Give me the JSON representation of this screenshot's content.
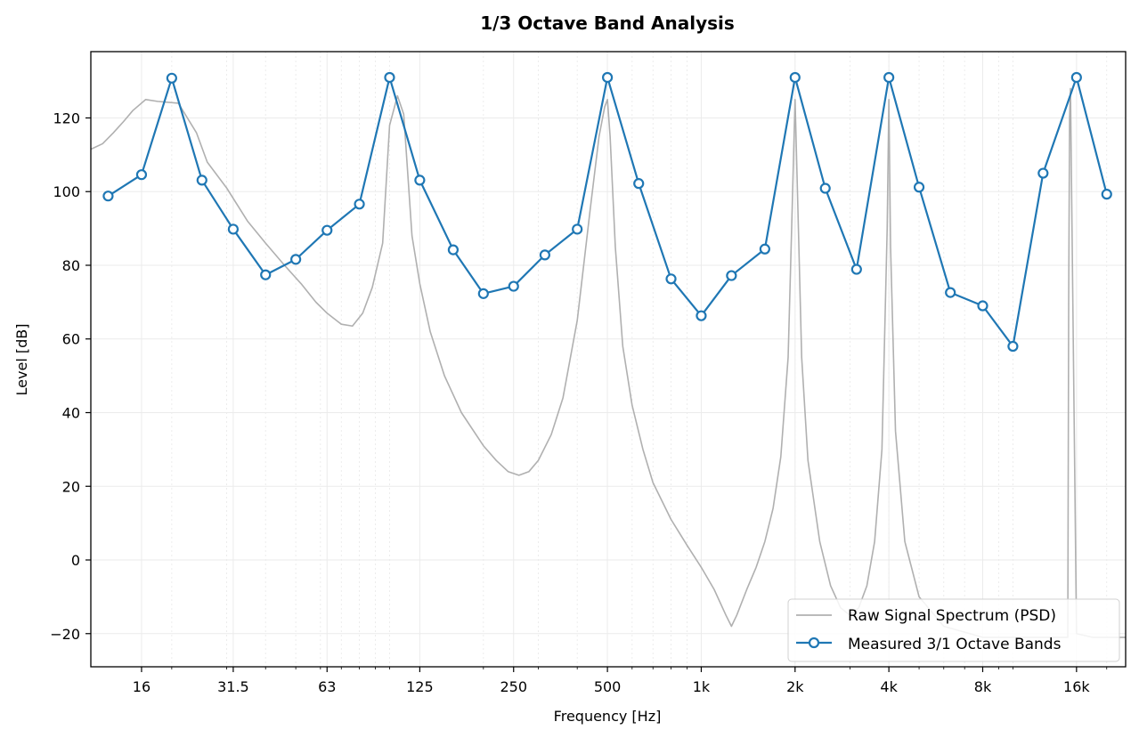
{
  "chart_data": {
    "type": "line",
    "title": "1/3 Octave Band Analysis",
    "xlabel": "Frequency [Hz]",
    "ylabel": "Level [dB]",
    "xscale": "log",
    "xlim": [
      11,
      23000
    ],
    "ylim": [
      -29,
      138
    ],
    "x_ticks": [
      16,
      31.5,
      63,
      125,
      250,
      500,
      1000,
      2000,
      4000,
      8000,
      16000
    ],
    "x_tick_labels": [
      "16",
      "31.5",
      "63",
      "125",
      "250",
      "500",
      "1k",
      "2k",
      "4k",
      "8k",
      "16k"
    ],
    "y_ticks": [
      -20,
      0,
      20,
      40,
      60,
      80,
      100,
      120
    ],
    "y_tick_labels": [
      "−20",
      "0",
      "20",
      "40",
      "60",
      "80",
      "100",
      "120"
    ],
    "grid": true,
    "legend_position": "bottom-right",
    "series": [
      {
        "name": "Raw Signal Spectrum (PSD)",
        "color": "#b0b0b0",
        "marker": "none",
        "x": [
          11,
          12,
          13,
          14,
          15,
          16.5,
          18,
          21,
          24,
          26,
          30,
          35,
          40,
          46,
          52,
          58,
          63,
          70,
          76,
          82,
          88,
          95,
          100,
          106,
          111,
          118,
          125,
          135,
          150,
          170,
          200,
          220,
          240,
          260,
          280,
          300,
          330,
          360,
          400,
          440,
          470,
          490,
          500,
          510,
          530,
          560,
          600,
          650,
          700,
          800,
          900,
          1000,
          1100,
          1200,
          1250,
          1300,
          1400,
          1500,
          1600,
          1700,
          1800,
          1900,
          1950,
          2000,
          2050,
          2100,
          2200,
          2400,
          2600,
          2800,
          3000,
          3200,
          3400,
          3600,
          3800,
          3950,
          4000,
          4050,
          4200,
          4500,
          5000,
          6000,
          8000,
          10000,
          12000,
          14000,
          15000,
          15100,
          15200,
          15300,
          16000,
          18000,
          20000,
          23000
        ],
        "y": [
          111.5,
          113,
          116,
          119,
          122,
          125,
          124.5,
          124,
          116,
          108,
          101,
          92,
          86,
          80,
          75,
          70,
          67,
          64,
          63.5,
          67,
          74,
          86,
          118,
          126,
          121,
          88,
          75,
          62,
          50,
          40,
          31,
          27,
          24,
          23,
          24,
          27,
          34,
          44,
          65,
          95,
          115,
          123,
          125,
          115,
          85,
          58,
          42,
          30,
          21,
          11,
          4,
          -2,
          -8,
          -15,
          -18,
          -15,
          -8,
          -2,
          5,
          14,
          28,
          55,
          90,
          125,
          90,
          55,
          27,
          5,
          -7,
          -13,
          -15,
          -13,
          -7,
          5,
          30,
          90,
          125,
          85,
          35,
          5,
          -10,
          -18,
          -21,
          -21,
          -21,
          -21,
          -21,
          70,
          120,
          128,
          -20,
          -21,
          -21,
          -21
        ]
      },
      {
        "name": "Measured 3/1 Octave Bands",
        "color": "#1f77b4",
        "marker": "circle",
        "x": [
          12.5,
          16,
          20,
          25,
          31.5,
          40,
          50,
          63,
          80,
          100,
          125,
          160,
          200,
          250,
          315,
          400,
          500,
          630,
          800,
          1000,
          1250,
          1600,
          2000,
          2500,
          3150,
          4000,
          5000,
          6300,
          8000,
          10000,
          12500,
          16000,
          20000
        ],
        "y": [
          98.8,
          104.6,
          130.8,
          103.1,
          89.8,
          77.4,
          81.6,
          89.5,
          96.6,
          131.0,
          103.1,
          84.2,
          72.3,
          74.3,
          82.8,
          89.8,
          131.0,
          102.2,
          76.3,
          66.3,
          77.2,
          84.4,
          131.0,
          100.9,
          78.9,
          131.0,
          101.2,
          72.6,
          69.0,
          58.0,
          105.0,
          131.0,
          99.3
        ]
      }
    ]
  }
}
